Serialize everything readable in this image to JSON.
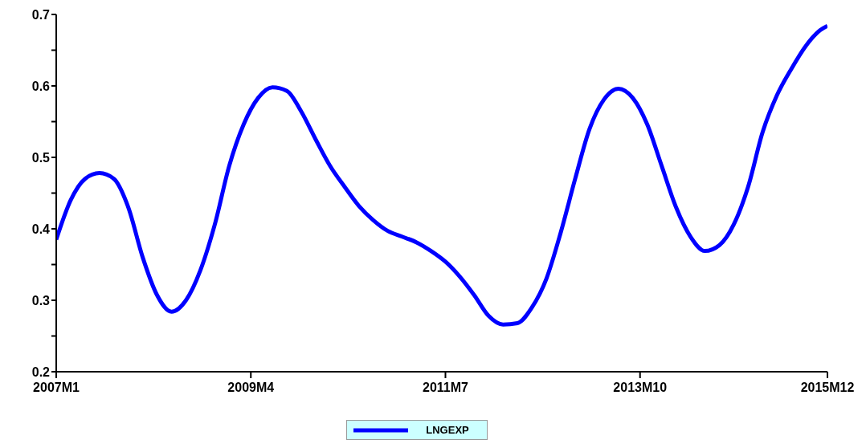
{
  "chart_data": {
    "type": "line",
    "x": [
      "2007-01",
      "2007-03",
      "2007-05",
      "2007-07",
      "2007-09",
      "2007-11",
      "2008-01",
      "2008-03",
      "2008-05",
      "2008-07",
      "2008-09",
      "2008-11",
      "2009-01",
      "2009-03",
      "2009-05",
      "2009-07",
      "2009-09",
      "2009-11",
      "2010-01",
      "2010-03",
      "2010-05",
      "2010-07",
      "2010-09",
      "2010-11",
      "2011-01",
      "2011-03",
      "2011-05",
      "2011-07",
      "2011-09",
      "2011-11",
      "2012-01",
      "2012-03",
      "2012-05",
      "2012-07",
      "2012-09",
      "2012-11",
      "2013-01",
      "2013-03",
      "2013-05",
      "2013-07",
      "2013-09",
      "2013-11",
      "2014-01",
      "2014-03",
      "2014-05",
      "2014-07",
      "2014-09",
      "2014-11",
      "2015-01",
      "2015-03",
      "2015-05",
      "2015-07",
      "2015-09",
      "2015-11",
      "2015-12"
    ],
    "series": [
      {
        "name": "LNGEXP",
        "color": "#0000ff",
        "values": [
          0.385,
          0.44,
          0.47,
          0.478,
          0.47,
          0.43,
          0.36,
          0.307,
          0.284,
          0.3,
          0.342,
          0.406,
          0.488,
          0.546,
          0.583,
          0.598,
          0.593,
          0.564,
          0.525,
          0.488,
          0.459,
          0.432,
          0.412,
          0.397,
          0.389,
          0.381,
          0.369,
          0.354,
          0.333,
          0.307,
          0.278,
          0.266,
          0.268,
          0.29,
          0.33,
          0.395,
          0.47,
          0.54,
          0.581,
          0.596,
          0.583,
          0.546,
          0.488,
          0.43,
          0.389,
          0.369,
          0.377,
          0.406,
          0.459,
          0.535,
          0.587,
          0.624,
          0.656,
          0.678,
          0.684
        ]
      }
    ],
    "xlim": [
      "2007-01",
      "2015-12"
    ],
    "xticks": [
      {
        "value": "2007-01",
        "label": "2007M1"
      },
      {
        "value": "2009-04",
        "label": "2009M4"
      },
      {
        "value": "2011-07",
        "label": "2011M7"
      },
      {
        "value": "2013-10",
        "label": "2013M10"
      },
      {
        "value": "2015-12",
        "label": "2015M12"
      }
    ],
    "ylim": [
      0.2,
      0.7
    ],
    "yticks": [
      0.2,
      {
        "value": 0.25,
        "label": null
      },
      0.3,
      {
        "value": 0.35,
        "label": null
      },
      0.4,
      {
        "value": 0.45,
        "label": null
      },
      0.5,
      {
        "value": 0.55,
        "label": null
      },
      0.6,
      {
        "value": 0.65,
        "label": null
      },
      0.7
    ],
    "grid": false,
    "legend": "bottom",
    "marker": "none",
    "line_style": "solid"
  }
}
